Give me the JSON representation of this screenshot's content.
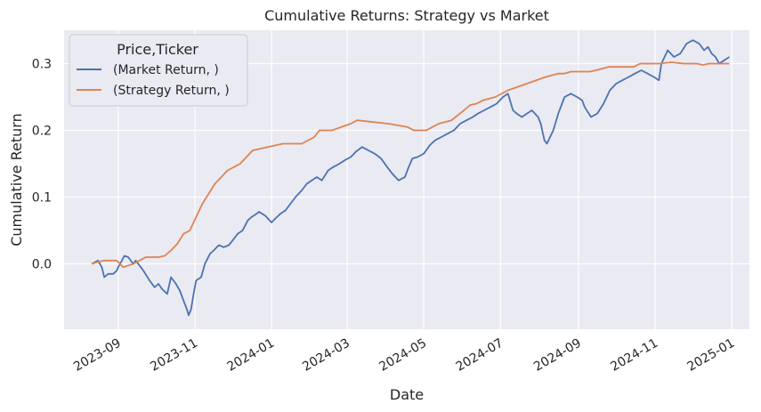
{
  "chart_data": {
    "type": "line",
    "title": "Cumulative Returns: Strategy vs Market",
    "xlabel": "Date",
    "ylabel": "Cumulative Return",
    "xlim": [
      "2023-07-20",
      "2025-01-15"
    ],
    "ylim": [
      -0.098,
      0.35
    ],
    "grid": true,
    "legend_placement": "upper-left",
    "legend_title": "Price,Ticker",
    "x_ticks": [
      "2023-09",
      "2023-11",
      "2024-01",
      "2024-03",
      "2024-05",
      "2024-07",
      "2024-09",
      "2024-11",
      "2025-01"
    ],
    "y_ticks": [
      0.0,
      0.1,
      0.2,
      0.3
    ],
    "series": [
      {
        "name": "(Market Return, )",
        "color": "#4c72b0",
        "x": [
          "2023-08-11",
          "2023-08-16",
          "2023-08-19",
          "2023-08-21",
          "2023-08-24",
          "2023-08-28",
          "2023-08-31",
          "2023-09-01",
          "2023-09-06",
          "2023-09-09",
          "2023-09-13",
          "2023-09-15",
          "2023-09-19",
          "2023-09-21",
          "2023-09-26",
          "2023-09-30",
          "2023-10-03",
          "2023-10-06",
          "2023-10-10",
          "2023-10-13",
          "2023-10-17",
          "2023-10-20",
          "2023-10-23",
          "2023-10-26",
          "2023-10-27",
          "2023-10-29",
          "2023-10-31",
          "2023-11-02",
          "2023-11-06",
          "2023-11-09",
          "2023-11-13",
          "2023-11-16",
          "2023-11-20",
          "2023-11-24",
          "2023-11-28",
          "2023-12-01",
          "2023-12-05",
          "2023-12-09",
          "2023-12-13",
          "2023-12-16",
          "2023-12-20",
          "2023-12-22",
          "2023-12-27",
          "2024-01-01",
          "2024-01-04",
          "2024-01-08",
          "2024-01-12",
          "2024-01-16",
          "2024-01-20",
          "2024-01-25",
          "2024-01-29",
          "2024-02-02",
          "2024-02-06",
          "2024-02-10",
          "2024-02-15",
          "2024-02-19",
          "2024-02-24",
          "2024-02-28",
          "2024-03-04",
          "2024-03-08",
          "2024-03-13",
          "2024-03-18",
          "2024-03-23",
          "2024-03-28",
          "2024-04-02",
          "2024-04-06",
          "2024-04-11",
          "2024-04-16",
          "2024-04-19",
          "2024-04-22",
          "2024-04-26",
          "2024-05-01",
          "2024-05-06",
          "2024-05-10",
          "2024-05-15",
          "2024-05-20",
          "2024-05-25",
          "2024-05-30",
          "2024-06-04",
          "2024-06-09",
          "2024-06-13",
          "2024-06-18",
          "2024-06-23",
          "2024-06-28",
          "2024-07-03",
          "2024-07-07",
          "2024-07-11",
          "2024-07-14",
          "2024-07-18",
          "2024-07-22",
          "2024-07-26",
          "2024-07-31",
          "2024-08-02",
          "2024-08-05",
          "2024-08-07",
          "2024-08-12",
          "2024-08-16",
          "2024-08-21",
          "2024-08-26",
          "2024-08-31",
          "2024-09-04",
          "2024-09-06",
          "2024-09-11",
          "2024-09-16",
          "2024-09-21",
          "2024-09-26",
          "2024-10-01",
          "2024-10-06",
          "2024-10-11",
          "2024-10-16",
          "2024-10-21",
          "2024-10-26",
          "2024-10-31",
          "2024-11-04",
          "2024-11-06",
          "2024-11-11",
          "2024-11-16",
          "2024-11-21",
          "2024-11-26",
          "2024-12-01",
          "2024-12-06",
          "2024-12-10",
          "2024-12-13",
          "2024-12-16",
          "2024-12-19",
          "2024-12-22",
          "2024-12-26",
          "2024-12-30"
        ],
        "y": [
          0.0,
          0.005,
          -0.005,
          -0.02,
          -0.015,
          -0.015,
          -0.01,
          -0.005,
          0.012,
          0.01,
          0.0,
          0.005,
          -0.005,
          -0.01,
          -0.025,
          -0.035,
          -0.03,
          -0.038,
          -0.045,
          -0.02,
          -0.03,
          -0.04,
          -0.055,
          -0.07,
          -0.077,
          -0.068,
          -0.045,
          -0.025,
          -0.02,
          0.0,
          0.015,
          0.02,
          0.028,
          0.025,
          0.028,
          0.035,
          0.045,
          0.05,
          0.065,
          0.07,
          0.075,
          0.078,
          0.072,
          0.062,
          0.068,
          0.075,
          0.08,
          0.09,
          0.1,
          0.11,
          0.12,
          0.125,
          0.13,
          0.125,
          0.14,
          0.145,
          0.15,
          0.155,
          0.16,
          0.168,
          0.175,
          0.17,
          0.165,
          0.158,
          0.145,
          0.135,
          0.125,
          0.13,
          0.145,
          0.158,
          0.16,
          0.165,
          0.178,
          0.185,
          0.19,
          0.195,
          0.2,
          0.21,
          0.215,
          0.22,
          0.225,
          0.23,
          0.235,
          0.24,
          0.25,
          0.255,
          0.23,
          0.225,
          0.22,
          0.225,
          0.23,
          0.22,
          0.21,
          0.185,
          0.18,
          0.2,
          0.225,
          0.25,
          0.255,
          0.25,
          0.245,
          0.235,
          0.22,
          0.225,
          0.24,
          0.26,
          0.27,
          0.275,
          0.28,
          0.285,
          0.29,
          0.285,
          0.28,
          0.275,
          0.3,
          0.32,
          0.31,
          0.315,
          0.33,
          0.335,
          0.33,
          0.32,
          0.325,
          0.315,
          0.31,
          0.3,
          0.305,
          0.31
        ]
      },
      {
        "name": "(Strategy Return, )",
        "color": "#dd8452",
        "x": [
          "2023-08-11",
          "2023-08-16",
          "2023-08-21",
          "2023-08-31",
          "2023-09-05",
          "2023-09-13",
          "2023-09-18",
          "2023-09-23",
          "2023-10-03",
          "2023-10-08",
          "2023-10-13",
          "2023-10-18",
          "2023-10-23",
          "2023-10-28",
          "2023-11-02",
          "2023-11-07",
          "2023-11-12",
          "2023-11-17",
          "2023-11-22",
          "2023-11-27",
          "2023-12-02",
          "2023-12-07",
          "2023-12-12",
          "2023-12-17",
          "2024-01-10",
          "2024-01-15",
          "2024-01-20",
          "2024-01-25",
          "2024-02-04",
          "2024-02-08",
          "2024-02-18",
          "2024-03-04",
          "2024-03-09",
          "2024-04-03",
          "2024-04-18",
          "2024-04-23",
          "2024-05-03",
          "2024-05-08",
          "2024-05-13",
          "2024-05-23",
          "2024-06-02",
          "2024-06-07",
          "2024-06-12",
          "2024-06-17",
          "2024-06-27",
          "2024-07-07",
          "2024-07-22",
          "2024-08-06",
          "2024-08-16",
          "2024-08-21",
          "2024-08-26",
          "2024-09-10",
          "2024-09-15",
          "2024-09-25",
          "2024-10-05",
          "2024-10-15",
          "2024-10-20",
          "2024-10-25",
          "2024-11-04",
          "2024-11-14",
          "2024-11-24",
          "2024-12-04",
          "2024-12-09",
          "2024-12-14",
          "2024-12-30"
        ],
        "y": [
          0.0,
          0.003,
          0.005,
          0.005,
          -0.005,
          0.0,
          0.005,
          0.01,
          0.01,
          0.012,
          0.02,
          0.03,
          0.045,
          0.05,
          0.07,
          0.09,
          0.105,
          0.12,
          0.13,
          0.14,
          0.145,
          0.15,
          0.16,
          0.17,
          0.18,
          0.18,
          0.18,
          0.18,
          0.19,
          0.2,
          0.2,
          0.21,
          0.215,
          0.21,
          0.205,
          0.2,
          0.2,
          0.205,
          0.21,
          0.215,
          0.23,
          0.238,
          0.24,
          0.245,
          0.25,
          0.26,
          0.27,
          0.28,
          0.285,
          0.285,
          0.288,
          0.288,
          0.29,
          0.295,
          0.295,
          0.295,
          0.3,
          0.3,
          0.3,
          0.302,
          0.3,
          0.3,
          0.298,
          0.3,
          0.3
        ]
      }
    ]
  }
}
